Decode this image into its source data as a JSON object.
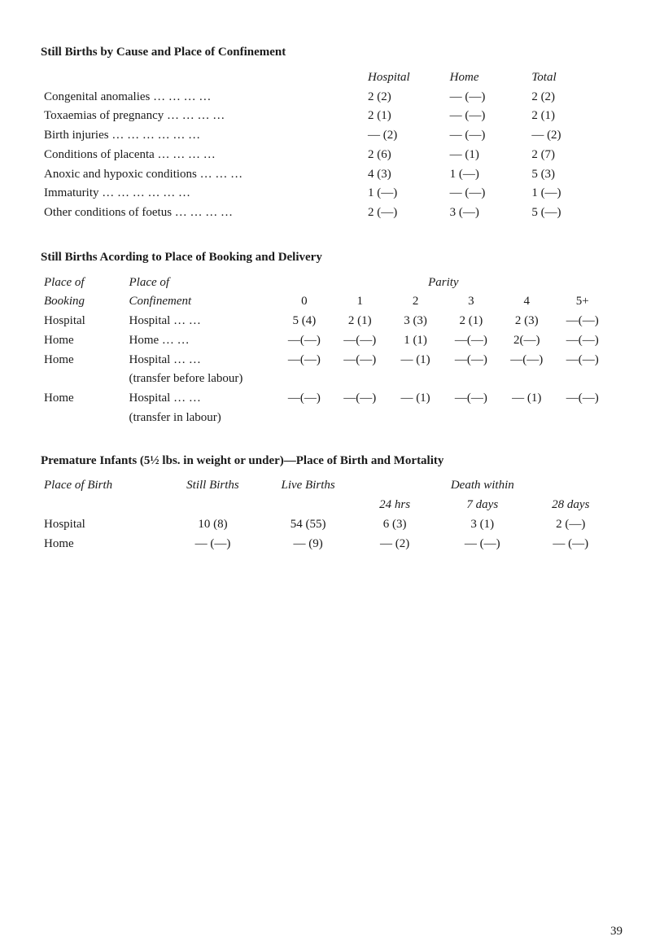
{
  "section1": {
    "title": "Still Births by Cause and Place of Confinement",
    "headers": {
      "hospital": "Hospital",
      "home": "Home",
      "total": "Total"
    },
    "rows": [
      {
        "label": "Congenital anomalies",
        "dots": "…    …    …    …",
        "hosp": "2  (2)",
        "home": "—  (—)",
        "total": "2  (2)"
      },
      {
        "label": "Toxaemias of pregnancy",
        "dots": "…    …    …    …",
        "hosp": "2  (1)",
        "home": "—  (—)",
        "total": "2  (1)"
      },
      {
        "label": "Birth injuries …",
        "dots": "…    …    …    …    …",
        "hosp": "—  (2)",
        "home": "—  (—)",
        "total": "—  (2)"
      },
      {
        "label": "Conditions of placenta",
        "dots": "…    …    …    …",
        "hosp": "2  (6)",
        "home": "—   (1)",
        "total": "2  (7)"
      },
      {
        "label": "Anoxic and hypoxic conditions",
        "dots": "…    …    …",
        "hosp": "4  (3)",
        "home": "1  (—)",
        "total": "5  (3)"
      },
      {
        "label": "Immaturity    …",
        "dots": "…    …    …    …    …",
        "hosp": "1  (—)",
        "home": "—  (—)",
        "total": "1  (—)"
      },
      {
        "label": "Other conditions of foetus …",
        "dots": "…    …    …",
        "hosp": "2  (—)",
        "home": "3  (—)",
        "total": "5  (—)"
      }
    ]
  },
  "section2": {
    "title": "Still Births Acording to Place of Booking and Delivery",
    "sub": {
      "col0": "Place of Booking",
      "col1": "Place of Confinement",
      "parity": "Parity"
    },
    "parity_headers": [
      "0",
      "1",
      "2",
      "3",
      "4",
      "5+"
    ],
    "rows": [
      {
        "booking": "Hospital",
        "conf": "Hospital   …    …",
        "cells": [
          "5 (4)",
          "2 (1)",
          "3 (3)",
          "2 (1)",
          "2 (3)",
          "—(—)"
        ]
      },
      {
        "booking": "Home",
        "conf": "Home       …    …",
        "cells": [
          "—(—)",
          "—(—)",
          "1 (1)",
          "—(—)",
          "2(—)",
          "—(—)"
        ]
      },
      {
        "booking": "Home",
        "conf": "Hospital   …    …",
        "cells": [
          "—(—)",
          "—(—)",
          "— (1)",
          "—(—)",
          "—(—)",
          "—(—)"
        ]
      },
      {
        "booking": " ",
        "conf": "(transfer before labour)",
        "cells": [
          "",
          "",
          "",
          "",
          "",
          ""
        ]
      },
      {
        "booking": "Home",
        "conf": "Hospital   …    …",
        "cells": [
          "—(—)",
          "—(—)",
          "— (1)",
          "—(—)",
          "— (1)",
          "—(—)"
        ]
      },
      {
        "booking": " ",
        "conf": "(transfer in labour)",
        "cells": [
          "",
          "",
          "",
          "",
          "",
          ""
        ]
      }
    ]
  },
  "section3": {
    "title": "Premature Infants (5½ lbs. in weight or under)—Place of Birth and Mortality",
    "headers": {
      "col0": "Place of Birth",
      "col1": "Still Births",
      "col2": "Live Births",
      "col3_group": "Death within",
      "col3": "24 hrs",
      "col4": "7 days",
      "col5": "28 days"
    },
    "rows": [
      {
        "place": "Hospital",
        "still": "10   (8)",
        "live": "54 (55)",
        "d24": "6   (3)",
        "d7": "3   (1)",
        "d28": "2   (—)"
      },
      {
        "place": "Home",
        "still": "—  (—)",
        "live": "—   (9)",
        "d24": "—   (2)",
        "d7": "—  (—)",
        "d28": "—   (—)"
      }
    ]
  },
  "page_number": "39"
}
